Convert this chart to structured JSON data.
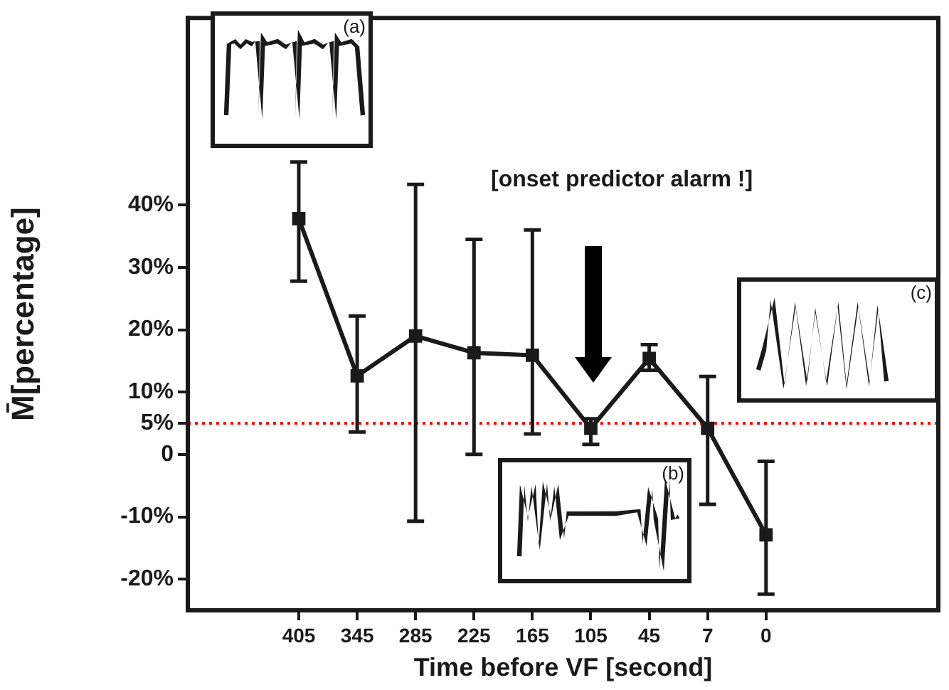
{
  "chart_data": {
    "type": "line",
    "xlabel": "Time before VF [second]",
    "ylabel": "M̄[percentage]",
    "categories": [
      "405",
      "345",
      "285",
      "225",
      "165",
      "105",
      "45",
      "7",
      "0"
    ],
    "series": [
      {
        "color": "#1a1a1a",
        "values": [
          37.8,
          12.6,
          19.0,
          16.3,
          15.9,
          4.2,
          15.4,
          4.2,
          -12.9
        ],
        "errors": [
          [
            27.8,
            46.9
          ],
          [
            3.6,
            22.2
          ],
          [
            -10.7,
            43.3
          ],
          [
            0,
            34.5
          ],
          [
            3.3,
            36
          ],
          [
            1.6,
            5.7
          ],
          [
            13.5,
            17.6
          ],
          [
            -8,
            12.5
          ],
          [
            -22.4,
            -1.1
          ]
        ]
      }
    ],
    "ylim": [
      -25,
      70
    ],
    "yticks": [
      {
        "value": -20,
        "label": "-20%"
      },
      {
        "value": -10,
        "label": "-10%"
      },
      {
        "value": 0,
        "label": "0"
      },
      {
        "value": 5,
        "label": "5%"
      },
      {
        "value": 10,
        "label": "10%"
      },
      {
        "value": 20,
        "label": "20%"
      },
      {
        "value": 30,
        "label": "30%"
      },
      {
        "value": 40,
        "label": "40%"
      }
    ],
    "ref_lines": [
      {
        "axis": "y",
        "value": 5,
        "color": "#ff0000",
        "line_style": "dotted"
      }
    ],
    "annotations": [
      "[onset predictor alarm !]",
      "(a)",
      "(b)",
      "(c)"
    ],
    "marker": "square",
    "line_style": "solid",
    "grid": false,
    "legend": false
  }
}
